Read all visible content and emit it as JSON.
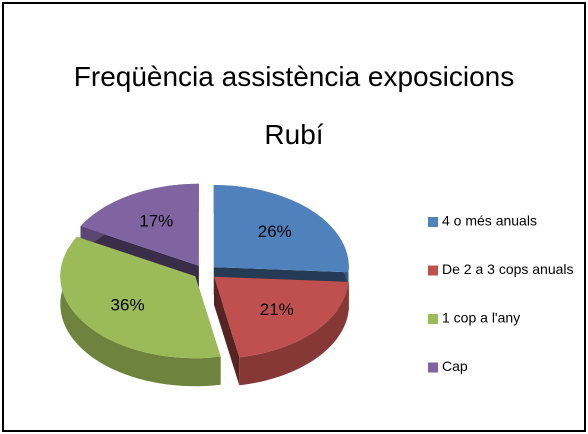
{
  "chart_data": {
    "type": "pie",
    "title": "Freqüència assistència exposicions Rubí",
    "categories": [
      "4 o més anuals",
      "De 2 a 3 cops anuals",
      "1 cop a l'any",
      "Cap"
    ],
    "values": [
      26,
      21,
      36,
      17
    ],
    "value_labels": [
      "26%",
      "21%",
      "36%",
      "17%"
    ],
    "colors": [
      "#4f81bd",
      "#c0504d",
      "#9bbb59",
      "#8064a2"
    ],
    "legend": "right"
  }
}
